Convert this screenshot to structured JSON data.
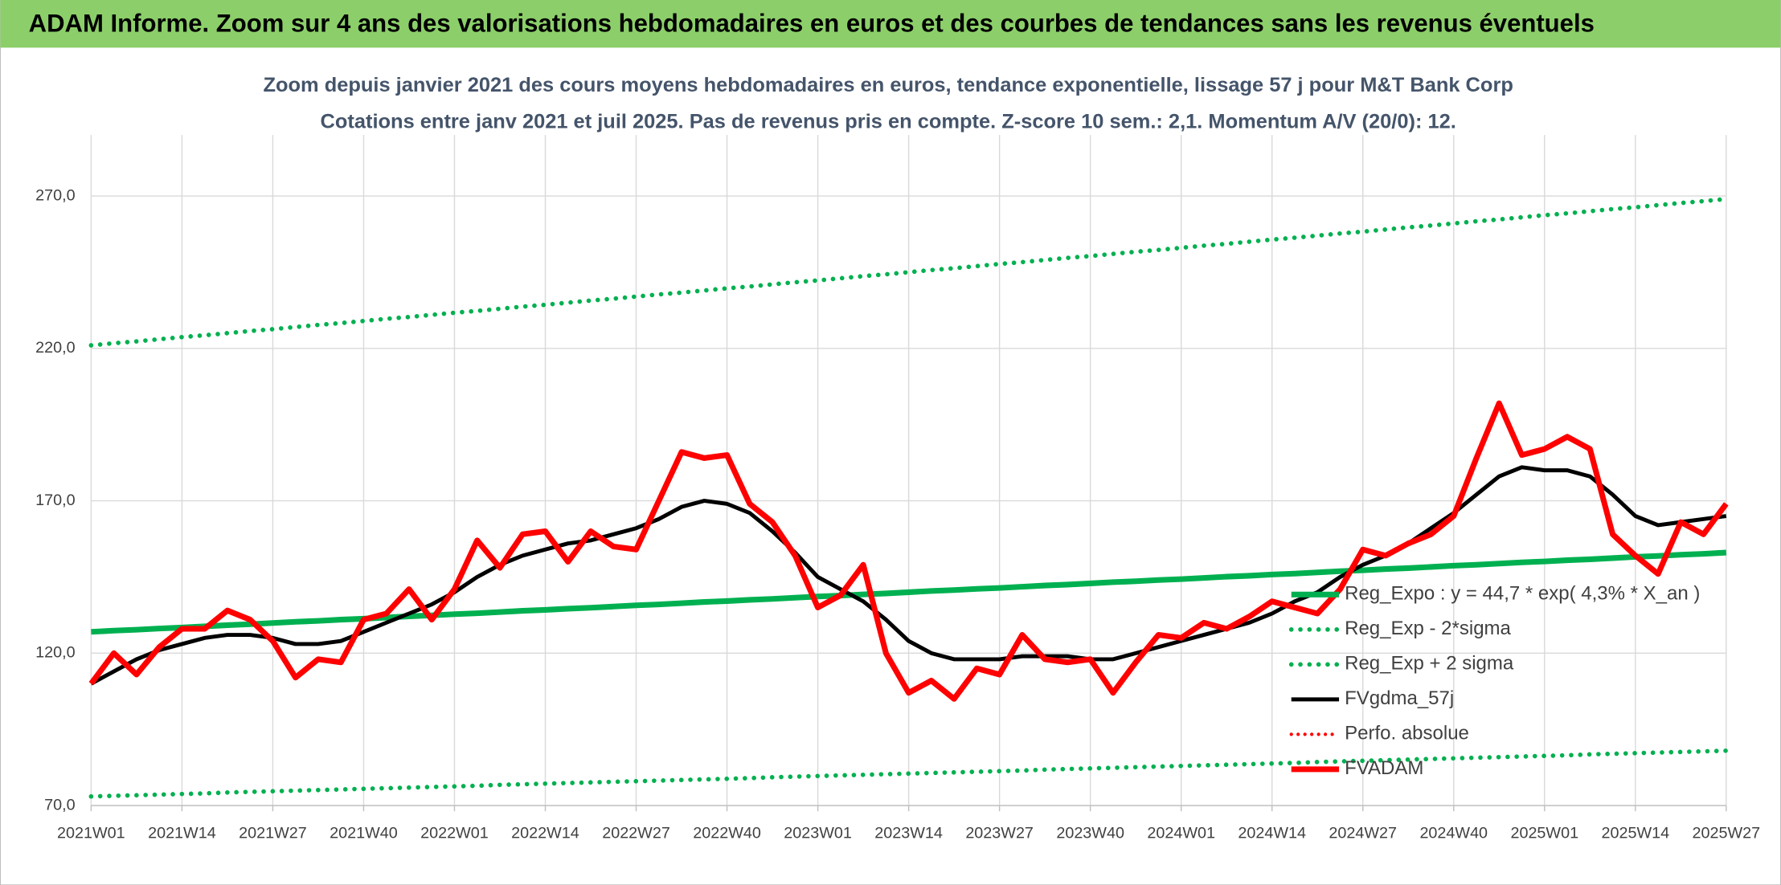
{
  "chart_data": {
    "type": "line",
    "title": "ADAM Informe. Zoom sur 4 ans des valorisations hebdomadaires en euros et des courbes de tendances sans les revenus éventuels",
    "subtitle": [
      "Zoom depuis janvier 2021 des cours moyens hebdomadaires en euros, tendance exponentielle, lissage 57 j pour M&T Bank Corp",
      "Cotations entre janv 2021 et juil 2025. Pas de revenus pris en compte. Z-score 10 sem.: 2,1. Momentum A/V (20/0): 12."
    ],
    "categories": [
      "2021W01",
      null,
      null,
      null,
      "2021W14",
      null,
      null,
      null,
      "2021W27",
      null,
      null,
      null,
      "2021W40",
      null,
      null,
      null,
      "2022W01",
      null,
      null,
      null,
      "2022W14",
      null,
      null,
      null,
      "2022W27",
      null,
      null,
      null,
      "2022W40",
      null,
      null,
      null,
      "2023W01",
      null,
      null,
      null,
      "2023W14",
      null,
      null,
      null,
      "2023W27",
      null,
      null,
      null,
      "2023W40",
      null,
      null,
      null,
      "2024W01",
      null,
      null,
      null,
      "2024W14",
      null,
      null,
      null,
      "2024W27",
      null,
      null,
      null,
      "2024W40",
      null,
      null,
      null,
      "2025W01",
      null,
      null,
      null,
      "2025W14",
      null,
      null,
      null,
      "2025W27"
    ],
    "ylim": [
      70,
      290
    ],
    "yticks": [
      {
        "value": 70,
        "label": "70,0"
      },
      {
        "value": 120,
        "label": "120,0"
      },
      {
        "value": 170,
        "label": "170,0"
      },
      {
        "value": 220,
        "label": "220,0"
      },
      {
        "value": 270,
        "label": "270,0"
      }
    ],
    "grid": true,
    "legend": "right",
    "series": [
      {
        "name": "Reg_Expo : y = 44,7 * exp( 4,3% *  X_an )",
        "color": "#00b050",
        "style": "solid",
        "width": 5,
        "values": [
          127.0,
          127.4,
          127.7,
          128.1,
          128.4,
          128.8,
          129.2,
          129.5,
          129.9,
          130.3,
          130.6,
          131.0,
          131.3,
          131.7,
          132.1,
          132.4,
          132.8,
          133.1,
          133.5,
          133.9,
          134.2,
          134.6,
          134.9,
          135.3,
          135.7,
          136.0,
          136.4,
          136.8,
          137.1,
          137.5,
          137.8,
          138.2,
          138.6,
          138.9,
          139.3,
          139.6,
          140.0,
          140.4,
          140.7,
          141.1,
          141.4,
          141.8,
          142.2,
          142.5,
          142.9,
          143.3,
          143.6,
          144.0,
          144.3,
          144.7,
          145.1,
          145.4,
          145.8,
          146.1,
          146.5,
          146.9,
          147.2,
          147.6,
          147.9,
          148.3,
          148.7,
          149.0,
          149.4,
          149.8,
          150.1,
          150.5,
          150.8,
          151.2,
          151.6,
          151.9,
          152.3,
          152.6,
          153.0
        ]
      },
      {
        "name": "Reg_Exp - 2*sigma",
        "color": "#00b050",
        "style": "dotted",
        "width": 4,
        "values": [
          73.0,
          73.2,
          73.4,
          73.6,
          73.8,
          74.0,
          74.3,
          74.5,
          74.7,
          74.9,
          75.1,
          75.3,
          75.5,
          75.7,
          75.9,
          76.1,
          76.3,
          76.5,
          76.8,
          77.0,
          77.2,
          77.4,
          77.6,
          77.8,
          78.0,
          78.2,
          78.4,
          78.6,
          78.8,
          79.0,
          79.3,
          79.5,
          79.7,
          79.9,
          80.1,
          80.3,
          80.5,
          80.7,
          80.9,
          81.1,
          81.3,
          81.5,
          81.8,
          82.0,
          82.2,
          82.4,
          82.6,
          82.8,
          83.0,
          83.2,
          83.4,
          83.6,
          83.8,
          84.0,
          84.3,
          84.5,
          84.7,
          84.9,
          85.1,
          85.3,
          85.5,
          85.7,
          85.9,
          86.1,
          86.3,
          86.5,
          86.8,
          87.0,
          87.2,
          87.4,
          87.6,
          87.8,
          88.0
        ]
      },
      {
        "name": "Reg_Exp + 2 sigma",
        "color": "#00b050",
        "style": "dotted",
        "width": 4,
        "values": [
          221.0,
          221.7,
          222.3,
          223.0,
          223.7,
          224.3,
          225.0,
          225.7,
          226.3,
          227.0,
          227.7,
          228.3,
          229.0,
          229.7,
          230.3,
          231.0,
          231.7,
          232.3,
          233.0,
          233.7,
          234.3,
          235.0,
          235.7,
          236.3,
          237.0,
          237.7,
          238.3,
          239.0,
          239.7,
          240.3,
          241.0,
          241.7,
          242.3,
          243.0,
          243.7,
          244.3,
          245.0,
          245.7,
          246.3,
          247.0,
          247.7,
          248.3,
          249.0,
          249.7,
          250.3,
          251.0,
          251.7,
          252.3,
          253.0,
          253.7,
          254.3,
          255.0,
          255.7,
          256.3,
          257.0,
          257.7,
          258.3,
          259.0,
          259.7,
          260.3,
          261.0,
          261.7,
          262.3,
          263.0,
          263.7,
          264.3,
          265.0,
          265.7,
          266.3,
          267.0,
          267.7,
          268.3,
          269.0
        ]
      },
      {
        "name": "FVgdma_57j",
        "color": "#000000",
        "style": "solid",
        "width": 3.5,
        "values": [
          110,
          114,
          118,
          121,
          123,
          125,
          126,
          126,
          125,
          123,
          123,
          124,
          127,
          130,
          133,
          136,
          140,
          145,
          149,
          152,
          154,
          156,
          157,
          159,
          161,
          164,
          168,
          170,
          169,
          166,
          160,
          153,
          145,
          141,
          137,
          131,
          124,
          120,
          118,
          118,
          118,
          119,
          119,
          119,
          118,
          118,
          120,
          122,
          124,
          126,
          128,
          130,
          133,
          137,
          140,
          145,
          149,
          152,
          156,
          161,
          166,
          172,
          178,
          181,
          180,
          180,
          178,
          172,
          165,
          162,
          163,
          164,
          165
        ]
      },
      {
        "name": "Perfo. absolue",
        "color": "#ff0000",
        "style": "dotted",
        "width": 3,
        "values": [
          null,
          null,
          null,
          null,
          null,
          null,
          null,
          null,
          null,
          null,
          null,
          null,
          null,
          null,
          null,
          null,
          null,
          null,
          null,
          null,
          null,
          null,
          null,
          null,
          null,
          null,
          null,
          null,
          null,
          null,
          null,
          null,
          null,
          null,
          null,
          null,
          null,
          null,
          null,
          null,
          null,
          null,
          null,
          null,
          null,
          null,
          null,
          null,
          null,
          null,
          null,
          null,
          null,
          null,
          null,
          null,
          null,
          null,
          null,
          null,
          null,
          null,
          null,
          null,
          null,
          null,
          null,
          null,
          null,
          null,
          null,
          null,
          null
        ]
      },
      {
        "name": "FVADAM",
        "color": "#ff0000",
        "style": "solid",
        "width": 5,
        "values": [
          110,
          120,
          113,
          122,
          128,
          128,
          134,
          131,
          124,
          112,
          118,
          117,
          131,
          133,
          141,
          131,
          141,
          157,
          148,
          159,
          160,
          150,
          160,
          155,
          154,
          170,
          186,
          184,
          185,
          169,
          163,
          152,
          135,
          139,
          149,
          120,
          107,
          111,
          105,
          115,
          113,
          126,
          118,
          117,
          118,
          107,
          117,
          126,
          125,
          130,
          128,
          132,
          137,
          135,
          133,
          141,
          154,
          152,
          156,
          159,
          165,
          184,
          202,
          185,
          187,
          191,
          187,
          159,
          152,
          146,
          163,
          159,
          169
        ]
      }
    ]
  }
}
